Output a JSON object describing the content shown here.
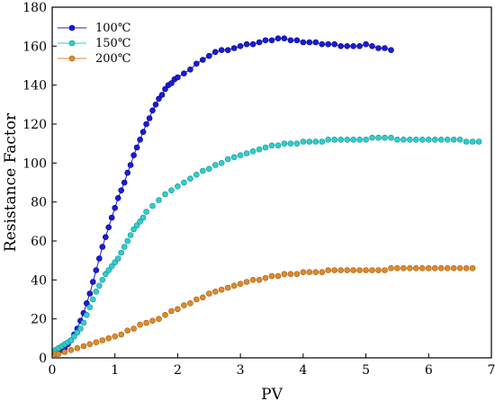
{
  "chart_data": {
    "type": "scatter",
    "xlabel": "PV",
    "ylabel": "Resistance Factor",
    "xlim": [
      0,
      7
    ],
    "ylim": [
      0,
      180
    ],
    "xticks": [
      0,
      1,
      2,
      3,
      4,
      5,
      6,
      7
    ],
    "yticks": [
      0,
      20,
      40,
      60,
      80,
      100,
      120,
      140,
      160,
      180
    ],
    "grid": false,
    "legend_position": "top-left",
    "series": [
      {
        "name": "100℃",
        "color": "#1b1bd6",
        "marker_edge": "#00008b",
        "connected": true,
        "x": [
          0.05,
          0.1,
          0.15,
          0.2,
          0.25,
          0.3,
          0.35,
          0.4,
          0.45,
          0.5,
          0.55,
          0.6,
          0.65,
          0.7,
          0.75,
          0.8,
          0.85,
          0.9,
          0.95,
          1.0,
          1.05,
          1.1,
          1.15,
          1.2,
          1.25,
          1.3,
          1.35,
          1.4,
          1.45,
          1.5,
          1.55,
          1.6,
          1.65,
          1.7,
          1.75,
          1.8,
          1.85,
          1.9,
          1.95,
          2.0,
          2.1,
          2.2,
          2.3,
          2.4,
          2.5,
          2.6,
          2.7,
          2.8,
          2.9,
          3.0,
          3.1,
          3.2,
          3.3,
          3.4,
          3.5,
          3.6,
          3.7,
          3.8,
          3.9,
          4.0,
          4.1,
          4.2,
          4.3,
          4.4,
          4.5,
          4.6,
          4.7,
          4.8,
          4.9,
          5.0,
          5.1,
          5.2,
          5.3,
          5.4
        ],
        "y": [
          2,
          3,
          4,
          5,
          7,
          9,
          12,
          15,
          19,
          23,
          28,
          33,
          39,
          45,
          51,
          57,
          62,
          67,
          72,
          77,
          82,
          86,
          90,
          95,
          99,
          104,
          108,
          112,
          116,
          120,
          123,
          127,
          130,
          133,
          135,
          138,
          140,
          141,
          143,
          144,
          146,
          148,
          151,
          153,
          155,
          157,
          158,
          158,
          159,
          160,
          161,
          161,
          162,
          163,
          163,
          164,
          164,
          163,
          163,
          162,
          162,
          162,
          161,
          161,
          161,
          160,
          160,
          160,
          160,
          161,
          160,
          159,
          159,
          158
        ]
      },
      {
        "name": "150℃",
        "color": "#2ecfcf",
        "marker_edge": "#138a8a",
        "connected": false,
        "x": [
          0.05,
          0.1,
          0.15,
          0.2,
          0.25,
          0.3,
          0.35,
          0.4,
          0.45,
          0.5,
          0.55,
          0.6,
          0.65,
          0.7,
          0.75,
          0.8,
          0.85,
          0.9,
          0.95,
          1.0,
          1.05,
          1.1,
          1.15,
          1.2,
          1.25,
          1.3,
          1.35,
          1.4,
          1.45,
          1.5,
          1.6,
          1.7,
          1.8,
          1.9,
          2.0,
          2.1,
          2.2,
          2.3,
          2.4,
          2.5,
          2.6,
          2.7,
          2.8,
          2.9,
          3.0,
          3.1,
          3.2,
          3.3,
          3.4,
          3.5,
          3.6,
          3.7,
          3.8,
          3.9,
          4.0,
          4.1,
          4.2,
          4.3,
          4.4,
          4.5,
          4.6,
          4.7,
          4.8,
          4.9,
          5.0,
          5.1,
          5.2,
          5.3,
          5.4,
          5.5,
          5.6,
          5.7,
          5.8,
          5.9,
          6.0,
          6.1,
          6.2,
          6.3,
          6.4,
          6.5,
          6.6,
          6.7,
          6.8
        ],
        "y": [
          4,
          5,
          6,
          7,
          8,
          9,
          11,
          13,
          15,
          18,
          22,
          26,
          30,
          34,
          37,
          40,
          43,
          45,
          47,
          49,
          51,
          54,
          57,
          60,
          63,
          66,
          68,
          70,
          72,
          75,
          78,
          81,
          84,
          86,
          88,
          90,
          92,
          94,
          96,
          97,
          99,
          100,
          102,
          103,
          104,
          105,
          106,
          107,
          108,
          109,
          109,
          110,
          110,
          110,
          111,
          111,
          111,
          111,
          112,
          112,
          112,
          112,
          112,
          112,
          112,
          113,
          113,
          113,
          113,
          112,
          112,
          112,
          112,
          112,
          112,
          112,
          112,
          112,
          112,
          112,
          111,
          111,
          111
        ]
      },
      {
        "name": "200℃",
        "color": "#e08a2a",
        "marker_edge": "#9a5a12",
        "connected": false,
        "x": [
          0.05,
          0.1,
          0.2,
          0.3,
          0.4,
          0.5,
          0.6,
          0.7,
          0.8,
          0.9,
          1.0,
          1.1,
          1.2,
          1.3,
          1.4,
          1.5,
          1.6,
          1.7,
          1.8,
          1.9,
          2.0,
          2.1,
          2.2,
          2.3,
          2.4,
          2.5,
          2.6,
          2.7,
          2.8,
          2.9,
          3.0,
          3.1,
          3.2,
          3.3,
          3.4,
          3.5,
          3.6,
          3.7,
          3.8,
          3.9,
          4.0,
          4.1,
          4.2,
          4.3,
          4.4,
          4.5,
          4.6,
          4.7,
          4.8,
          4.9,
          5.0,
          5.1,
          5.2,
          5.3,
          5.4,
          5.5,
          5.6,
          5.7,
          5.8,
          5.9,
          6.0,
          6.1,
          6.2,
          6.3,
          6.4,
          6.5,
          6.6,
          6.7
        ],
        "y": [
          2,
          2,
          3,
          4,
          5,
          6,
          7,
          8,
          9,
          10,
          11,
          12,
          14,
          15,
          17,
          18,
          19,
          20,
          22,
          24,
          25,
          27,
          28,
          30,
          31,
          33,
          34,
          35,
          36,
          37,
          38,
          39,
          40,
          40,
          41,
          42,
          42,
          43,
          43,
          43,
          44,
          44,
          44,
          44,
          45,
          45,
          45,
          45,
          45,
          45,
          45,
          45,
          45,
          45,
          46,
          46,
          46,
          46,
          46,
          46,
          46,
          46,
          46,
          46,
          46,
          46,
          46,
          46
        ]
      }
    ]
  }
}
